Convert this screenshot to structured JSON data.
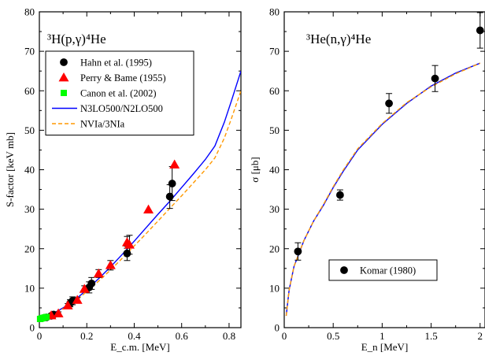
{
  "chart_data": [
    {
      "type": "scatter",
      "title": "³H(p,γ)⁴He",
      "xlabel": "E_c.m. [MeV]",
      "ylabel": "S-factor [keV mb]",
      "xlim": [
        0,
        0.85
      ],
      "ylim": [
        0,
        80
      ],
      "xticks": [
        0,
        0.2,
        0.4,
        0.6,
        0.8
      ],
      "xticklabels": [
        "0",
        "0.2",
        "0.4",
        "0.6",
        "0.8"
      ],
      "yticks": [
        0,
        10,
        20,
        30,
        40,
        50,
        60,
        70,
        80
      ],
      "yticklabels": [
        "0",
        "10",
        "20",
        "30",
        "40",
        "50",
        "60",
        "70",
        "80"
      ],
      "legend_position": "upper-left",
      "series": [
        {
          "name": "Hahn  et al. (1995)",
          "marker": "circle",
          "color": "#000000",
          "points": [
            {
              "x": 0.03,
              "y": 2.6,
              "err": 0.4
            },
            {
              "x": 0.05,
              "y": 3.0,
              "err": 0.5
            },
            {
              "x": 0.06,
              "y": 3.3,
              "err": 0.6
            },
            {
              "x": 0.13,
              "y": 6.2,
              "err": 0.9
            },
            {
              "x": 0.14,
              "y": 6.8,
              "err": 1.0
            },
            {
              "x": 0.21,
              "y": 10.2,
              "err": 1.4
            },
            {
              "x": 0.22,
              "y": 11.2,
              "err": 1.5
            },
            {
              "x": 0.37,
              "y": 18.8,
              "err": 1.8
            },
            {
              "x": 0.55,
              "y": 33.2,
              "err": 3.0
            },
            {
              "x": 0.56,
              "y": 36.5,
              "err": 4.3
            }
          ]
        },
        {
          "name": "Perry & Bame (1955)",
          "marker": "triangle",
          "color": "#ff0000",
          "points": [
            {
              "x": 0.05,
              "y": 3.1,
              "err": 0.3
            },
            {
              "x": 0.08,
              "y": 3.6,
              "err": 0.4
            },
            {
              "x": 0.12,
              "y": 5.6,
              "err": 0.5
            },
            {
              "x": 0.16,
              "y": 7.0,
              "err": 0.6
            },
            {
              "x": 0.19,
              "y": 9.8,
              "err": 0.8
            },
            {
              "x": 0.25,
              "y": 13.7,
              "err": 1.0
            },
            {
              "x": 0.3,
              "y": 15.8,
              "err": 1.2
            },
            {
              "x": 0.37,
              "y": 21.6,
              "err": 1.5
            },
            {
              "x": 0.38,
              "y": 21.0,
              "err": 2.4
            },
            {
              "x": 0.46,
              "y": 29.9,
              "err": 0
            },
            {
              "x": 0.57,
              "y": 41.3,
              "err": 0
            }
          ]
        },
        {
          "name": "Canon et al. (2002)",
          "marker": "square",
          "color": "#00ff00",
          "points": [
            {
              "x": 0.003,
              "y": 2.2,
              "err": 0
            },
            {
              "x": 0.008,
              "y": 2.3,
              "err": 0
            },
            {
              "x": 0.013,
              "y": 2.4,
              "err": 0
            },
            {
              "x": 0.018,
              "y": 2.5,
              "err": 0
            },
            {
              "x": 0.024,
              "y": 2.6,
              "err": 0
            },
            {
              "x": 0.03,
              "y": 2.7,
              "err": 0
            }
          ]
        },
        {
          "name": "N3LO500/N2LO500",
          "line": "solid",
          "color": "#0000ff",
          "points": [
            {
              "x": 0.0,
              "y": 1.9
            },
            {
              "x": 0.05,
              "y": 3.3
            },
            {
              "x": 0.1,
              "y": 5.0
            },
            {
              "x": 0.15,
              "y": 7.0
            },
            {
              "x": 0.2,
              "y": 9.6
            },
            {
              "x": 0.25,
              "y": 12.4
            },
            {
              "x": 0.3,
              "y": 15.4
            },
            {
              "x": 0.35,
              "y": 18.6
            },
            {
              "x": 0.4,
              "y": 21.9
            },
            {
              "x": 0.45,
              "y": 25.3
            },
            {
              "x": 0.5,
              "y": 28.7
            },
            {
              "x": 0.55,
              "y": 32.0
            },
            {
              "x": 0.6,
              "y": 35.5
            },
            {
              "x": 0.65,
              "y": 39.0
            },
            {
              "x": 0.7,
              "y": 42.6
            },
            {
              "x": 0.74,
              "y": 46.0
            },
            {
              "x": 0.78,
              "y": 52.0
            },
            {
              "x": 0.81,
              "y": 57.5
            },
            {
              "x": 0.85,
              "y": 65.0
            }
          ]
        },
        {
          "name": "NVIa/3NIa",
          "line": "dashed",
          "color": "#ff9900",
          "points": [
            {
              "x": 0.0,
              "y": 1.8
            },
            {
              "x": 0.05,
              "y": 3.1
            },
            {
              "x": 0.1,
              "y": 4.8
            },
            {
              "x": 0.15,
              "y": 6.7
            },
            {
              "x": 0.2,
              "y": 9.1
            },
            {
              "x": 0.25,
              "y": 11.8
            },
            {
              "x": 0.3,
              "y": 14.6
            },
            {
              "x": 0.35,
              "y": 17.6
            },
            {
              "x": 0.4,
              "y": 20.7
            },
            {
              "x": 0.45,
              "y": 23.8
            },
            {
              "x": 0.5,
              "y": 27.0
            },
            {
              "x": 0.55,
              "y": 30.2
            },
            {
              "x": 0.6,
              "y": 33.4
            },
            {
              "x": 0.65,
              "y": 36.7
            },
            {
              "x": 0.7,
              "y": 40.0
            },
            {
              "x": 0.74,
              "y": 43.0
            },
            {
              "x": 0.78,
              "y": 48.0
            },
            {
              "x": 0.81,
              "y": 53.0
            },
            {
              "x": 0.85,
              "y": 60.0
            }
          ]
        }
      ]
    },
    {
      "type": "scatter",
      "title": "³He(n,γ)⁴He",
      "xlabel": "E_n [MeV]",
      "ylabel": "σ [μb]",
      "xlim": [
        0,
        2.05
      ],
      "ylim": [
        0,
        80
      ],
      "xticks": [
        0,
        0.5,
        1,
        1.5,
        2
      ],
      "xticklabels": [
        "0",
        "0.5",
        "1",
        "1.5",
        "2"
      ],
      "yticks": [
        0,
        10,
        20,
        30,
        40,
        50,
        60,
        70,
        80
      ],
      "yticklabels": [
        "0",
        "10",
        "20",
        "30",
        "40",
        "50",
        "60",
        "70",
        "80"
      ],
      "legend_position": "lower-right",
      "series": [
        {
          "name": "Komar (1980)",
          "marker": "circle",
          "color": "#000000",
          "points": [
            {
              "x": 0.14,
              "y": 19.3,
              "err": 2.2
            },
            {
              "x": 0.57,
              "y": 33.6,
              "err": 1.3
            },
            {
              "x": 1.07,
              "y": 56.8,
              "err": 2.5
            },
            {
              "x": 1.54,
              "y": 63.1,
              "err": 3.3
            },
            {
              "x": 2.0,
              "y": 75.3,
              "err": 4.5
            }
          ]
        },
        {
          "line": "solid",
          "color": "#0000ff",
          "points": [
            {
              "x": 0.02,
              "y": 3.0
            },
            {
              "x": 0.05,
              "y": 9.5
            },
            {
              "x": 0.1,
              "y": 15.5
            },
            {
              "x": 0.2,
              "y": 22.0
            },
            {
              "x": 0.3,
              "y": 27.0
            },
            {
              "x": 0.4,
              "y": 31.0
            },
            {
              "x": 0.5,
              "y": 35.5
            },
            {
              "x": 0.6,
              "y": 39.5
            },
            {
              "x": 0.75,
              "y": 45.0
            },
            {
              "x": 1.0,
              "y": 51.5
            },
            {
              "x": 1.25,
              "y": 56.8
            },
            {
              "x": 1.5,
              "y": 61.2
            },
            {
              "x": 1.75,
              "y": 64.5
            },
            {
              "x": 2.0,
              "y": 67.0
            }
          ]
        },
        {
          "line": "dashed",
          "color": "#ff9900",
          "points": [
            {
              "x": 0.02,
              "y": 3.0
            },
            {
              "x": 0.05,
              "y": 9.5
            },
            {
              "x": 0.1,
              "y": 15.5
            },
            {
              "x": 0.2,
              "y": 22.0
            },
            {
              "x": 0.3,
              "y": 27.0
            },
            {
              "x": 0.4,
              "y": 31.2
            },
            {
              "x": 0.5,
              "y": 35.7
            },
            {
              "x": 0.6,
              "y": 39.8
            },
            {
              "x": 0.75,
              "y": 45.3
            },
            {
              "x": 1.0,
              "y": 51.7
            },
            {
              "x": 1.25,
              "y": 57.0
            },
            {
              "x": 1.5,
              "y": 61.0
            },
            {
              "x": 1.75,
              "y": 64.3
            },
            {
              "x": 2.0,
              "y": 67.0
            }
          ]
        }
      ]
    }
  ]
}
